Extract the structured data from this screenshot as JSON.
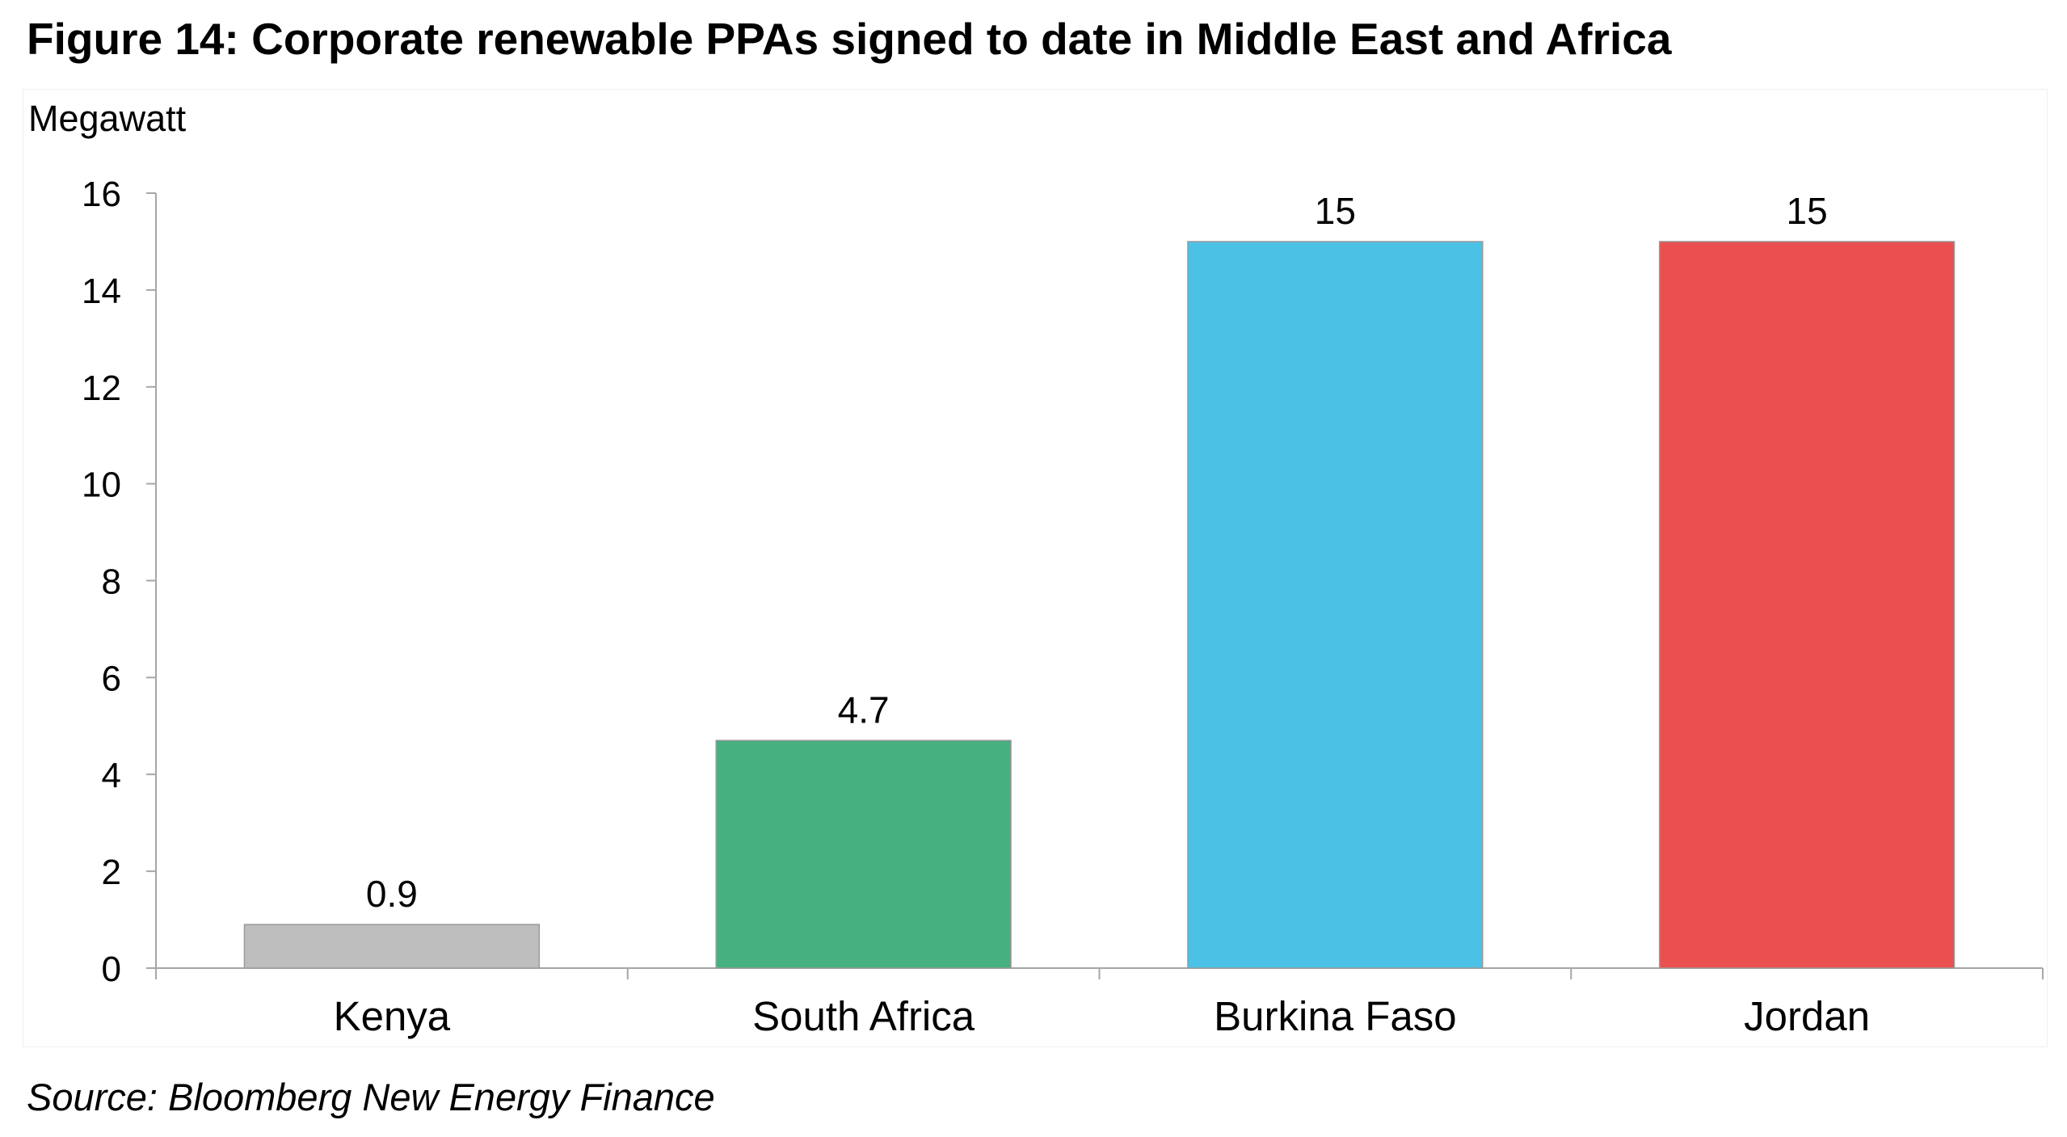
{
  "figure": {
    "title": "Figure 14: Corporate renewable PPAs signed to date in Middle East and Africa",
    "source": "Source: Bloomberg New Energy Finance"
  },
  "chart_data": {
    "type": "bar",
    "title": "Figure 14: Corporate renewable PPAs signed to date in Middle East and Africa",
    "ylabel": "Megawatt",
    "xlabel": "",
    "categories": [
      "Kenya",
      "South Africa",
      "Burkina Faso",
      "Jordan"
    ],
    "values": [
      0.9,
      4.7,
      15,
      15
    ],
    "data_labels": [
      "0.9",
      "4.7",
      "15",
      "15"
    ],
    "colors": [
      "#bfbebe",
      "#47b081",
      "#4bc1e5",
      "#ea5050"
    ],
    "ylim": [
      0,
      16
    ],
    "yticks": [
      0,
      2,
      4,
      6,
      8,
      10,
      12,
      14,
      16
    ],
    "grid": false,
    "legend": "none"
  }
}
